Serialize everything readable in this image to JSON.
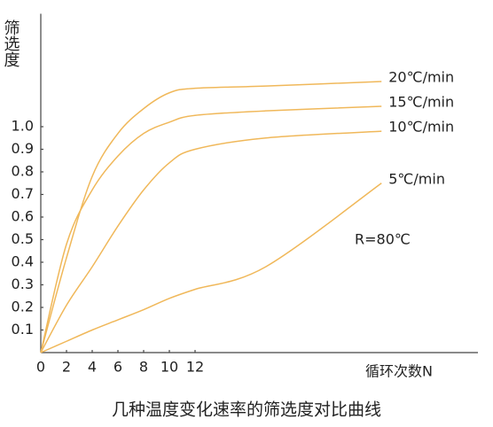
{
  "chart_data": {
    "type": "line",
    "title": "几种温度变化速率的筛选度对比曲线",
    "y_label": "筛选度",
    "x_label": "循环次数N",
    "annotation": "R=80℃",
    "x": [
      0,
      2,
      4,
      6,
      8,
      10,
      12,
      17.5,
      26.5
    ],
    "xlim": [
      0,
      34
    ],
    "xticks": [
      0,
      2,
      4,
      6,
      8,
      10,
      12
    ],
    "ylim": [
      0,
      1.5
    ],
    "yticks": [
      0.1,
      0.2,
      0.3,
      0.4,
      0.5,
      0.6,
      0.7,
      0.8,
      0.9,
      {
        "value": 1,
        "label": "1.0"
      }
    ],
    "grid": false,
    "series": [
      {
        "name": "20℃/min",
        "color": "#f0b85a",
        "values": [
          0,
          0.42,
          0.78,
          0.97,
          1.08,
          1.15,
          1.17,
          1.18,
          1.2
        ]
      },
      {
        "name": "15℃/min",
        "color": "#f0b85a",
        "values": [
          0,
          0.48,
          0.72,
          0.87,
          0.97,
          1.02,
          1.05,
          1.07,
          1.09
        ]
      },
      {
        "name": "10℃/min",
        "color": "#f0b85a",
        "values": [
          0,
          0.21,
          0.38,
          0.56,
          0.72,
          0.84,
          0.9,
          0.95,
          0.98
        ]
      },
      {
        "name": "5℃/min",
        "color": "#f0b85a",
        "values": [
          0,
          0.05,
          0.1,
          0.145,
          0.19,
          0.24,
          0.28,
          0.38,
          0.75
        ]
      }
    ]
  }
}
